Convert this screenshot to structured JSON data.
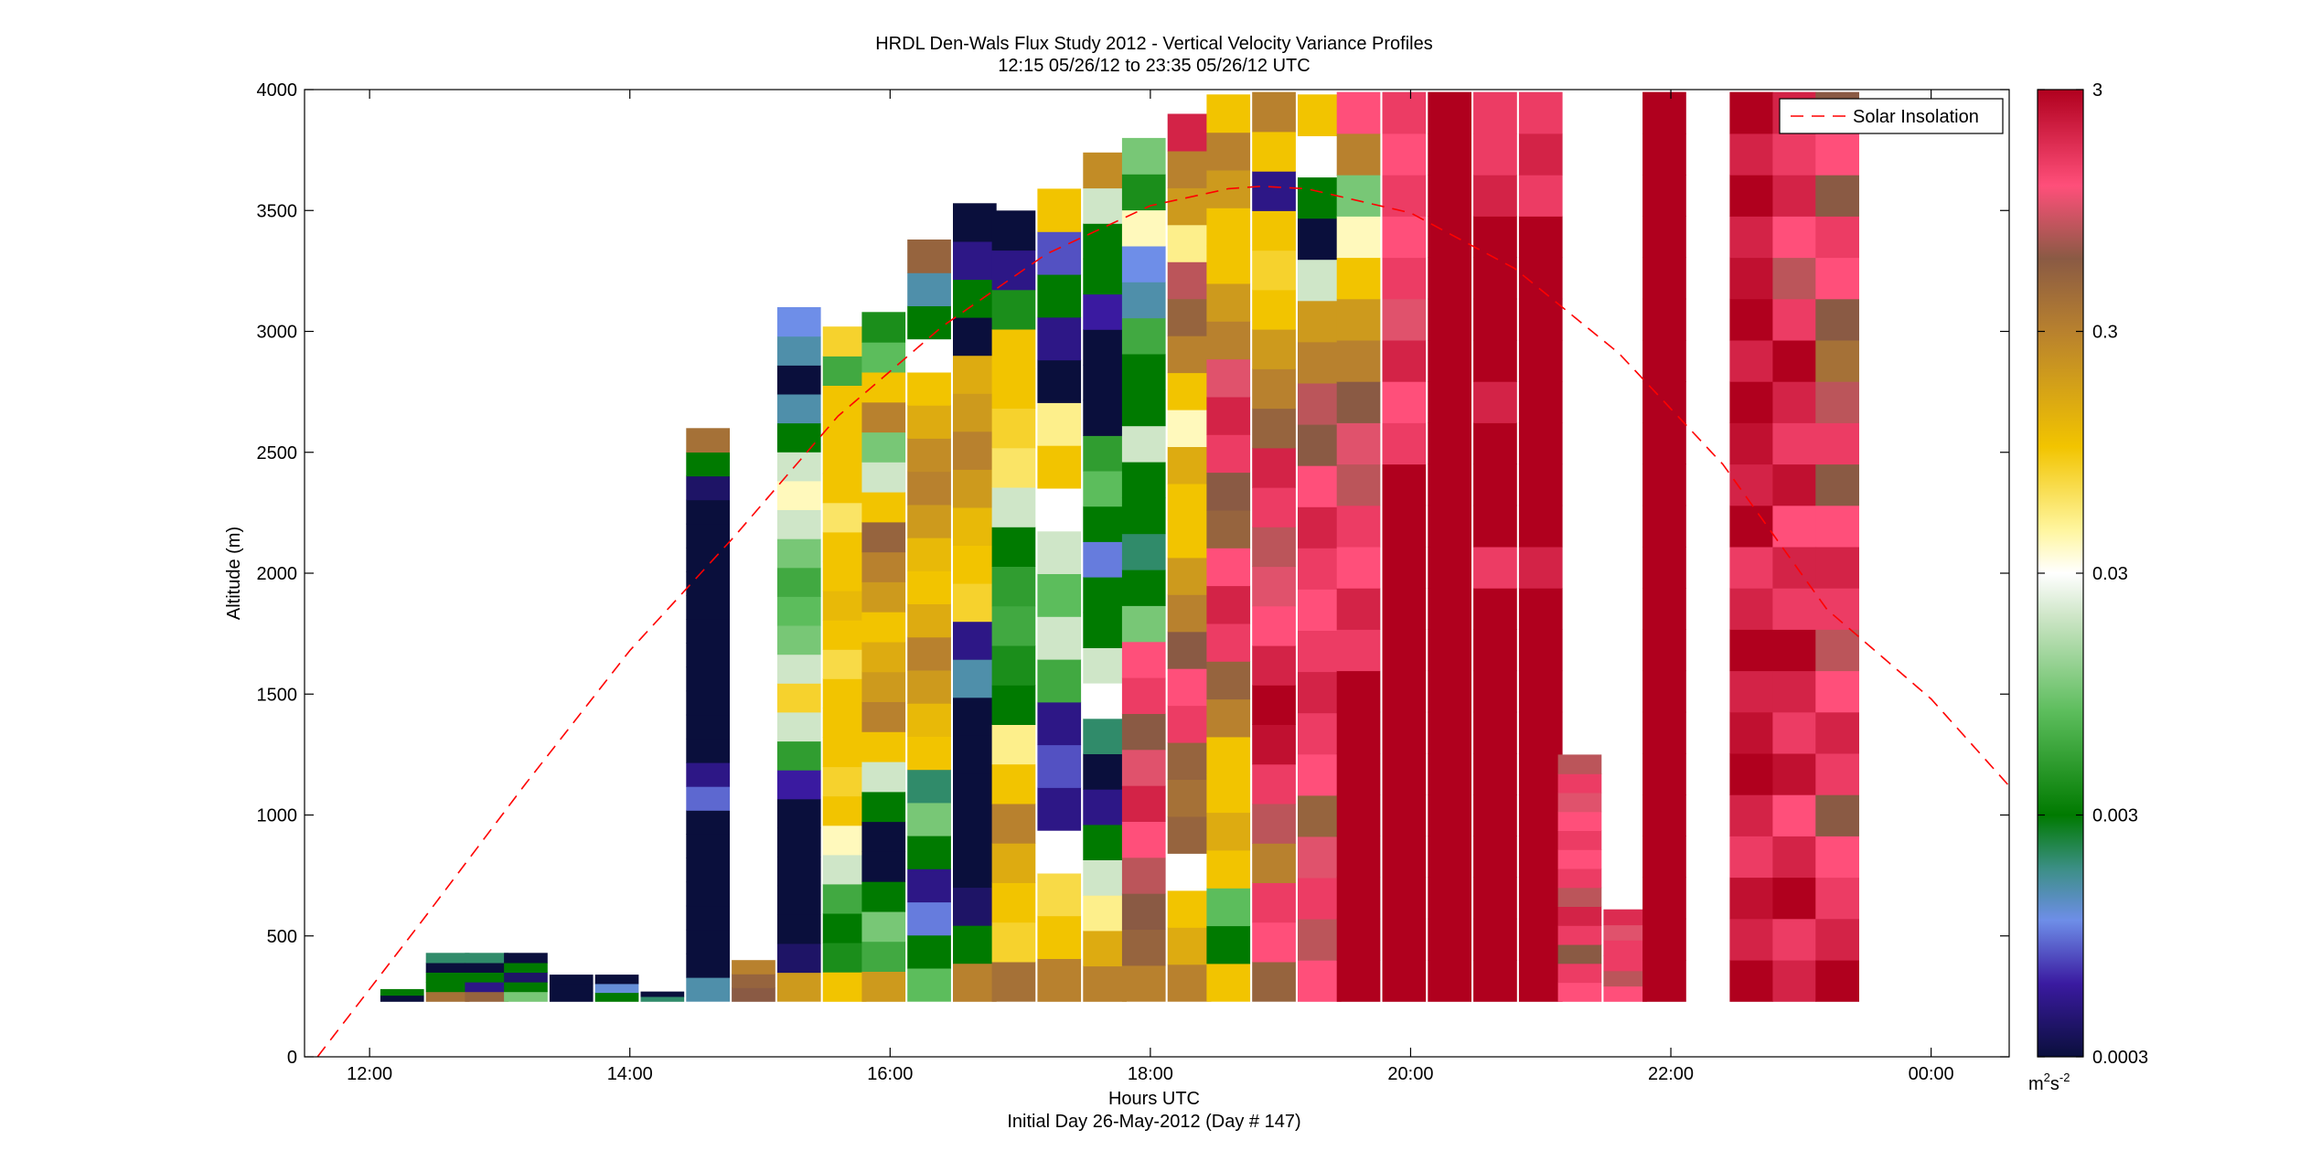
{
  "chart_data": {
    "type": "heatmap",
    "title": "HRDL Den-Wals Flux Study 2012 - Vertical Velocity Variance Profiles",
    "subtitle": "12:15 05/26/12 to 23:35 05/26/12  UTC",
    "xlabel": "Hours UTC",
    "xlabel2": "Initial Day 26-May-2012 (Day # 147)",
    "ylabel": "Altitude (m)",
    "xlim": [
      11.5,
      24.6
    ],
    "ylim": [
      0,
      4000
    ],
    "x_ticks": [
      {
        "value": 12,
        "label": "12:00"
      },
      {
        "value": 14,
        "label": "14:00"
      },
      {
        "value": 16,
        "label": "16:00"
      },
      {
        "value": 18,
        "label": "18:00"
      },
      {
        "value": 20,
        "label": "20:00"
      },
      {
        "value": 22,
        "label": "22:00"
      },
      {
        "value": 24,
        "label": "00:00"
      }
    ],
    "y_ticks": [
      {
        "value": 0,
        "label": "0"
      },
      {
        "value": 500,
        "label": "500"
      },
      {
        "value": 1000,
        "label": "1000"
      },
      {
        "value": 1500,
        "label": "1500"
      },
      {
        "value": 2000,
        "label": "2000"
      },
      {
        "value": 2500,
        "label": "2500"
      },
      {
        "value": 3000,
        "label": "3000"
      },
      {
        "value": 3500,
        "label": "3500"
      },
      {
        "value": 4000,
        "label": "4000"
      }
    ],
    "grid": false,
    "legend": {
      "position": "top-right",
      "entries": [
        {
          "name": "Solar Insolation",
          "color": "#ff0000",
          "style": "dashed"
        }
      ]
    },
    "colorbar": {
      "scale": "log",
      "range": [
        0.0003,
        3
      ],
      "ticks": [
        {
          "value": 3,
          "label": "3"
        },
        {
          "value": 0.3,
          "label": "0.3"
        },
        {
          "value": 0.03,
          "label": "0.03"
        },
        {
          "value": 0.003,
          "label": "0.003"
        },
        {
          "value": 0.0003,
          "label": "0.0003"
        }
      ],
      "units_base": "m",
      "units_exp1": "2",
      "units_mid": "s",
      "units_exp2": "-2",
      "stops": [
        {
          "v": 0.0003,
          "c": "#0a0f3c"
        },
        {
          "v": 0.0006,
          "c": "#3a1aa0"
        },
        {
          "v": 0.0011,
          "c": "#6e8ee8"
        },
        {
          "v": 0.0018,
          "c": "#3c8f86"
        },
        {
          "v": 0.003,
          "c": "#007a00"
        },
        {
          "v": 0.008,
          "c": "#5cbd5c"
        },
        {
          "v": 0.02,
          "c": "#cfe6c8"
        },
        {
          "v": 0.03,
          "c": "#ffffff"
        },
        {
          "v": 0.045,
          "c": "#fff6a0"
        },
        {
          "v": 0.1,
          "c": "#f2c400"
        },
        {
          "v": 0.3,
          "c": "#b8812e"
        },
        {
          "v": 0.6,
          "c": "#8a5a44"
        },
        {
          "v": 1.2,
          "c": "#ff4f7a"
        },
        {
          "v": 3,
          "c": "#b0001e"
        }
      ]
    },
    "profiles": [
      {
        "t": 12.25,
        "top": 280,
        "v": [
          0.0003,
          0.003
        ]
      },
      {
        "t": 12.6,
        "top": 430,
        "v": [
          0.4,
          0.003,
          0.003,
          0.0003,
          0.002
        ]
      },
      {
        "t": 12.9,
        "top": 430,
        "v": [
          0.5,
          0.0005,
          0.003,
          0.0003,
          0.002
        ]
      },
      {
        "t": 13.2,
        "top": 430,
        "v": [
          0.01,
          0.003,
          0.0004,
          0.003,
          0.0003
        ]
      },
      {
        "t": 13.55,
        "top": 340,
        "v": [
          0.0003,
          0.0003,
          0.0003
        ]
      },
      {
        "t": 13.9,
        "top": 340,
        "v": [
          0.003,
          0.0012,
          0.0003
        ]
      },
      {
        "t": 14.25,
        "top": 270,
        "v": [
          0.002,
          0.0003
        ]
      },
      {
        "t": 14.6,
        "top": 2600,
        "v": [
          0.0015,
          0.0003,
          0.0003,
          0.0003,
          0.0003,
          0.0003,
          0.0003,
          0.0003,
          0.0009,
          0.0005,
          0.0003,
          0.0003,
          0.0003,
          0.0003,
          0.0003,
          0.0003,
          0.0003,
          0.0003,
          0.0003,
          0.0003,
          0.0003,
          0.0004,
          0.003,
          0.4
        ]
      },
      {
        "t": 14.95,
        "top": 400,
        "v": [
          0.6,
          0.5,
          0.3
        ]
      },
      {
        "t": 15.3,
        "top": 3100,
        "v": [
          0.2,
          0.0004,
          0.0003,
          0.0003,
          0.0003,
          0.0003,
          0.0003,
          0.0006,
          0.005,
          0.02,
          0.08,
          0.02,
          0.01,
          0.008,
          0.006,
          0.01,
          0.02,
          0.04,
          0.02,
          0.003,
          0.0015,
          0.0003,
          0.0015,
          0.0011
        ]
      },
      {
        "t": 15.65,
        "top": 3020,
        "v": [
          0.1,
          0.004,
          0.003,
          0.006,
          0.02,
          0.04,
          0.1,
          0.08,
          0.1,
          0.1,
          0.1,
          0.07,
          0.1,
          0.12,
          0.1,
          0.1,
          0.06,
          0.1,
          0.1,
          0.1,
          0.1,
          0.006,
          0.08
        ]
      },
      {
        "t": 15.95,
        "top": 3080,
        "v": [
          0.2,
          0.006,
          0.01,
          0.003,
          0.0003,
          0.0003,
          0.003,
          0.02,
          0.1,
          0.3,
          0.2,
          0.15,
          0.1,
          0.2,
          0.3,
          0.5,
          0.1,
          0.02,
          0.01,
          0.3,
          0.1,
          0.008,
          0.004
        ]
      },
      {
        "t": 16.3,
        "top": 3380,
        "v": [
          0.008,
          0.003,
          0.001,
          0.0005,
          0.003,
          0.01,
          0.002,
          0.1,
          0.12,
          0.2,
          0.3,
          0.15,
          0.1,
          0.12,
          0.2,
          0.3,
          0.25,
          0.15,
          0.1,
          0.03,
          0.003,
          0.0015,
          0.5
        ]
      },
      {
        "t": 16.65,
        "top": 3530,
        "v": [
          0.3,
          0.003,
          0.0004,
          0.0003,
          0.0003,
          0.0003,
          0.0003,
          0.0003,
          0.0015,
          0.0005,
          0.08,
          0.1,
          0.12,
          0.2,
          0.3,
          0.2,
          0.15,
          0.0003,
          0.003,
          0.0005,
          0.0003
        ]
      },
      {
        "t": 16.95,
        "top": 3500,
        "v": [
          0.4,
          0.08,
          0.1,
          0.15,
          0.3,
          0.1,
          0.05,
          0.003,
          0.004,
          0.006,
          0.005,
          0.003,
          0.02,
          0.06,
          0.08,
          0.1,
          0.1,
          0.004,
          0.0005,
          0.0003
        ]
      },
      {
        "t": 17.3,
        "top": 3590,
        "v": [
          0.3,
          0.1,
          0.07,
          0.03,
          0.0005,
          0.0008,
          0.0005,
          0.006,
          0.02,
          0.008,
          0.02,
          0.03,
          0.1,
          0.05,
          0.0003,
          0.0005,
          0.003,
          0.0008,
          0.1
        ]
      },
      {
        "t": 17.65,
        "top": 3740,
        "v": [
          0.3,
          0.15,
          0.05,
          0.02,
          0.003,
          0.0005,
          0.0003,
          0.002,
          0.03,
          0.02,
          0.003,
          0.003,
          0.001,
          0.003,
          0.008,
          0.005,
          0.0003,
          0.0003,
          0.0003,
          0.0006,
          0.003,
          0.003,
          0.02,
          0.25
        ]
      },
      {
        "t": 17.95,
        "top": 3800,
        "v": [
          0.3,
          0.5,
          0.6,
          0.8,
          1.2,
          2,
          1,
          0.6,
          1.5,
          1.2,
          0.01,
          0.003,
          0.002,
          0.003,
          0.003,
          0.02,
          0.003,
          0.003,
          0.006,
          0.0015,
          0.0011,
          0.04,
          0.004,
          0.01
        ]
      },
      {
        "t": 18.3,
        "top": 3900,
        "v": [
          0.3,
          0.15,
          0.1,
          0.03,
          0.5,
          0.4,
          0.5,
          1.5,
          1.2,
          0.6,
          0.3,
          0.2,
          0.1,
          0.1,
          0.15,
          0.04,
          0.1,
          0.3,
          0.5,
          0.8,
          0.05,
          0.2,
          0.3,
          2
        ]
      },
      {
        "t": 18.6,
        "top": 3980,
        "v": [
          0.1,
          0.003,
          0.008,
          0.1,
          0.15,
          0.1,
          0.1,
          0.3,
          0.5,
          1.5,
          2,
          1.2,
          0.5,
          0.6,
          1.5,
          2,
          1,
          0.3,
          0.2,
          0.1,
          0.1,
          0.2,
          0.3,
          0.1
        ]
      },
      {
        "t": 18.95,
        "top": 3990,
        "v": [
          0.5,
          1.2,
          1.5,
          0.3,
          0.8,
          1.5,
          2.5,
          3,
          2,
          1.2,
          1,
          0.8,
          1.5,
          2,
          0.5,
          0.3,
          0.2,
          0.1,
          0.08,
          0.1,
          0.0005,
          0.1,
          0.3
        ]
      },
      {
        "t": 19.3,
        "top": 3980,
        "v": [
          1.2,
          0.8,
          1.5,
          1,
          0.5,
          1.2,
          1.5,
          2,
          1.5,
          1.2,
          1.5,
          2,
          1.2,
          0.6,
          0.8,
          0.3,
          0.2,
          0.02,
          0.0003,
          0.003,
          0.03,
          0.1
        ]
      },
      {
        "t": 19.6,
        "top": 3990,
        "v": [
          3,
          3,
          3,
          3,
          3,
          3,
          3,
          3,
          1.5,
          2,
          1.2,
          1.5,
          0.8,
          1,
          0.6,
          0.3,
          0.2,
          0.1,
          0.04,
          0.01,
          0.3,
          1.2
        ]
      },
      {
        "t": 19.95,
        "top": 3990,
        "v": [
          3,
          3,
          3,
          3,
          3,
          3,
          3,
          3,
          3,
          3,
          3,
          3,
          3,
          1.5,
          1.2,
          2,
          1,
          1.5,
          1.2,
          1.5,
          1.2,
          1.5
        ]
      },
      {
        "t": 20.3,
        "top": 3990,
        "v": [
          3,
          3,
          3,
          3,
          3,
          3,
          3,
          3,
          3,
          3,
          3,
          3,
          3,
          3,
          3,
          3,
          3,
          3,
          3,
          3,
          3,
          3
        ]
      },
      {
        "t": 20.65,
        "top": 3990,
        "v": [
          3,
          3,
          3,
          3,
          3,
          3,
          3,
          3,
          3,
          3,
          1.5,
          3,
          3,
          3,
          2,
          3,
          3,
          3,
          3,
          2,
          1.5,
          1.5
        ]
      },
      {
        "t": 21.0,
        "top": 3990,
        "v": [
          3,
          3,
          3,
          3,
          3,
          3,
          3,
          3,
          3,
          3,
          2,
          3,
          3,
          3,
          3,
          3,
          3,
          3,
          3,
          1.5,
          2,
          1.5
        ]
      },
      {
        "t": 21.3,
        "top": 1250,
        "v": [
          1.2,
          1.5,
          0.6,
          1.5,
          2,
          0.8,
          1.5,
          1.2,
          1.5,
          1.2,
          1,
          1.5,
          0.8
        ]
      },
      {
        "t": 21.65,
        "top": 610,
        "v": [
          1.2,
          0.8,
          1.5,
          1.5,
          1,
          1.8
        ]
      },
      {
        "t": 21.95,
        "top": 3990,
        "v": [
          3,
          3,
          3,
          3,
          3,
          3,
          3,
          3,
          3,
          3,
          3,
          3,
          3,
          3,
          3,
          3,
          3,
          3,
          3,
          3,
          3,
          3
        ]
      },
      {
        "t": 22.62,
        "top": 3990,
        "v": [
          3,
          2,
          2.5,
          1.5,
          2,
          3,
          2.5,
          2,
          3,
          2,
          1.5,
          3,
          2,
          2.5,
          3,
          2,
          3,
          2.5,
          2,
          3,
          2,
          3
        ]
      },
      {
        "t": 22.95,
        "top": 3990,
        "v": [
          2,
          1.5,
          3,
          2,
          1.2,
          2.5,
          1.5,
          2,
          3,
          1.5,
          2,
          1.2,
          2.5,
          1.5,
          2,
          3,
          1.5,
          0.8,
          1.2,
          2,
          1.5,
          2
        ]
      },
      {
        "t": 23.28,
        "top": 3990,
        "v": [
          3,
          2,
          1.5,
          1.2,
          0.6,
          1.5,
          2,
          1.2,
          0.8,
          1.5,
          2,
          1.2,
          0.6,
          1.5,
          0.8,
          0.4,
          0.6,
          1.2,
          1.5,
          0.6,
          1.2,
          0.6
        ]
      }
    ],
    "solar_insolation_curve": {
      "x": [
        11.6,
        12.4,
        13.2,
        14.0,
        14.8,
        15.6,
        16.4,
        17.2,
        18.0,
        18.6,
        18.85,
        19.2,
        20.0,
        20.8,
        21.6,
        22.4,
        23.2,
        24.0,
        24.6
      ],
      "y": [
        0,
        560,
        1130,
        1680,
        2150,
        2650,
        3020,
        3320,
        3520,
        3590,
        3600,
        3590,
        3490,
        3260,
        2910,
        2450,
        1850,
        1480,
        1120
      ]
    }
  }
}
